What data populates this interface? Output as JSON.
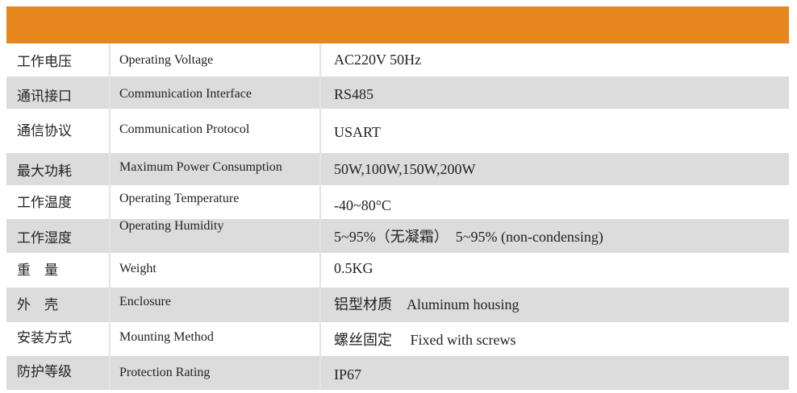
{
  "table": {
    "rows": [
      [
        "工作电压",
        "Operating Voltage",
        "AC220V 50Hz"
      ],
      [
        "通讯接口",
        "Communication Interface",
        "RS485"
      ],
      [
        "通信协议",
        "Communication Protocol",
        "USART"
      ],
      [
        "最大功耗",
        "Maximum Power Consumption",
        "50W,100W,150W,200W"
      ],
      [
        "工作温度",
        "Operating Temperature",
        "-40~80°C"
      ],
      [
        "工作湿度",
        "Operating Humidity",
        "5~95%（无凝霜）　5~95% (non-condensing)"
      ],
      [
        "重　量",
        "Weight",
        "0.5KG"
      ],
      [
        "外　壳",
        "Enclosure",
        "铝型材质　Aluminum housing"
      ],
      [
        "安装方式",
        "Mounting Method",
        "螺丝固定　 Fixed with screws"
      ],
      [
        "防护等级",
        "Protection Rating",
        "IP67"
      ]
    ]
  }
}
